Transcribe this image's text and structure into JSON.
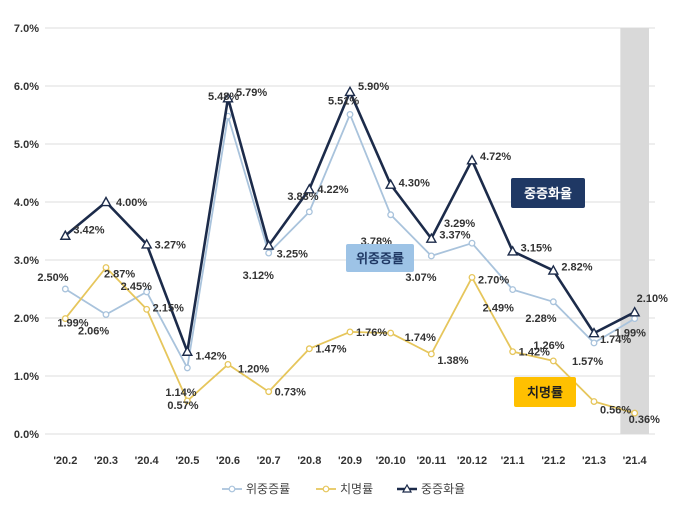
{
  "chart_data": {
    "type": "line",
    "categories": [
      "'20.2",
      "'20.3",
      "'20.4",
      "'20.5",
      "'20.6",
      "'20.7",
      "'20.8",
      "'20.9",
      "'20.10",
      "'20.11",
      "'20.12",
      "'21.1",
      "'21.2",
      "'21.3",
      "'21.4"
    ],
    "ylim": [
      0,
      7
    ],
    "yticks": [
      "0.0%",
      "1.0%",
      "2.0%",
      "3.0%",
      "4.0%",
      "5.0%",
      "6.0%",
      "7.0%"
    ],
    "grid": "horizontal",
    "shaded_category": "'21.4",
    "legend_position": "bottom",
    "series": [
      {
        "name": "위중증률",
        "color": "#a9c3dc",
        "marker": "circle",
        "values": [
          2.5,
          2.06,
          2.45,
          1.14,
          5.48,
          3.12,
          3.83,
          5.51,
          3.78,
          3.07,
          3.29,
          2.49,
          2.28,
          1.57,
          1.99
        ],
        "labels": [
          "2.50%",
          "2.06%",
          "2.45%",
          "1.14%",
          "5.48%",
          "3.12%",
          "3.83%",
          "5.51%",
          "3.78%",
          "3.07%",
          "3.29%",
          "2.49%",
          "2.28%",
          "1.57%",
          "1.99%"
        ]
      },
      {
        "name": "치명률",
        "color": "#e6c65c",
        "marker": "circle",
        "values": [
          1.99,
          2.87,
          2.15,
          0.57,
          1.2,
          0.73,
          1.47,
          1.76,
          1.74,
          1.38,
          2.7,
          1.42,
          1.26,
          0.56,
          0.36
        ],
        "labels": [
          "1.99%",
          "2.87%",
          "2.15%",
          "0.57%",
          "1.20%",
          "0.73%",
          "1.47%",
          "1.76%",
          "1.74%",
          "1.38%",
          "2.70%",
          "1.42%",
          "1.26%",
          "0.56%",
          "0.36%"
        ]
      },
      {
        "name": "중증화율",
        "color": "#1c2b4a",
        "marker": "triangle",
        "values": [
          3.42,
          4.0,
          3.27,
          1.42,
          5.79,
          3.25,
          4.22,
          5.9,
          4.3,
          3.37,
          4.72,
          3.15,
          2.82,
          1.74,
          2.1
        ],
        "labels": [
          "3.42%",
          "4.00%",
          "3.27%",
          "1.42%",
          "5.79%",
          "3.25%",
          "4.22%",
          "5.90%",
          "4.30%",
          "3.37%",
          "4.72%",
          "3.15%",
          "2.82%",
          "1.74%",
          "2.10%"
        ]
      }
    ],
    "annotations": [
      {
        "text": "중증화율",
        "bg": "#1f3864",
        "fg": "#ffffff"
      },
      {
        "text": "위중증률",
        "bg": "#9dc3e6",
        "fg": "#1f3864"
      },
      {
        "text": "치명률",
        "bg": "#ffc000",
        "fg": "#1f1f1f"
      }
    ]
  }
}
